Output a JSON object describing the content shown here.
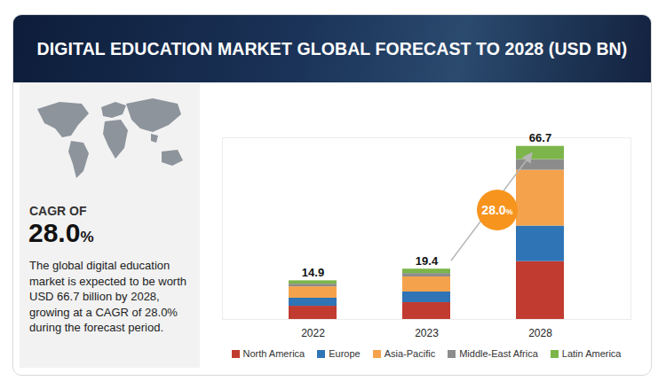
{
  "chart_data": {
    "type": "bar",
    "title": "DIGITAL EDUCATION MARKET GLOBAL FORECAST TO 2028 (USD BN)",
    "categories": [
      "2022",
      "2023",
      "2028"
    ],
    "series": [
      {
        "name": "North America",
        "color": "#c13b30",
        "values": [
          5.1,
          6.5,
          22.3
        ]
      },
      {
        "name": "Europe",
        "color": "#2f74b5",
        "values": [
          3.1,
          4.1,
          13.7
        ]
      },
      {
        "name": "Asia-Pacific",
        "color": "#f5a24c",
        "values": [
          4.4,
          5.8,
          21.5
        ]
      },
      {
        "name": "Middle-East Africa",
        "color": "#8c8c8c",
        "values": [
          1.0,
          1.3,
          4.1
        ]
      },
      {
        "name": "Latin America",
        "color": "#7cb54a",
        "values": [
          1.3,
          1.7,
          5.1
        ]
      }
    ],
    "totals": [
      14.9,
      19.4,
      66.7
    ],
    "stacked": true,
    "ylim": [
      0,
      70
    ],
    "tick_labels": "x",
    "legend": "bottom",
    "annotation": "28.0%",
    "cagr_label": "CAGR OF",
    "cagr_value": "28.0%",
    "description": "The global digital education market is expected to be worth USD 66.7 billion by 2028, growing at a CAGR of 28.0% during the forecast period."
  }
}
